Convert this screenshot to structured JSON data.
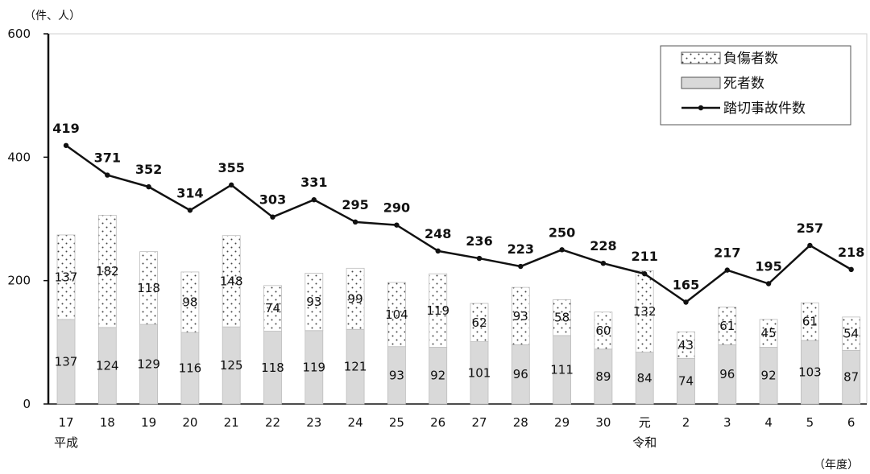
{
  "chart_data": {
    "type": "bar",
    "stacked": true,
    "y_unit_label": "（件、人）",
    "x_unit_label": "（年度）",
    "ylim": [
      0,
      600
    ],
    "yticks": [
      0,
      200,
      400,
      600
    ],
    "categories": [
      "17",
      "18",
      "19",
      "20",
      "21",
      "22",
      "23",
      "24",
      "25",
      "26",
      "27",
      "28",
      "29",
      "30",
      "元",
      "2",
      "3",
      "4",
      "5",
      "6"
    ],
    "era_labels": [
      {
        "index": 0,
        "text": "平成"
      },
      {
        "index": 14,
        "text": "令和"
      }
    ],
    "series": [
      {
        "name": "死者数",
        "kind": "bar",
        "fill": "#d9d9d9",
        "values": [
          137,
          124,
          129,
          116,
          125,
          118,
          119,
          121,
          93,
          92,
          101,
          96,
          111,
          89,
          84,
          74,
          96,
          92,
          103,
          87
        ]
      },
      {
        "name": "負傷者数",
        "kind": "bar",
        "fill": "dotted",
        "values": [
          137,
          182,
          118,
          98,
          148,
          74,
          93,
          99,
          104,
          119,
          62,
          93,
          58,
          60,
          132,
          43,
          61,
          45,
          61,
          54
        ]
      },
      {
        "name": "踏切事故件数",
        "kind": "line",
        "color": "#111111",
        "values": [
          419,
          371,
          352,
          314,
          355,
          303,
          331,
          295,
          290,
          248,
          236,
          223,
          250,
          228,
          211,
          165,
          217,
          195,
          257,
          218
        ]
      }
    ],
    "legend": {
      "placement": "top-right",
      "order": [
        "負傷者数",
        "死者数",
        "踏切事故件数"
      ]
    },
    "grid": false
  }
}
